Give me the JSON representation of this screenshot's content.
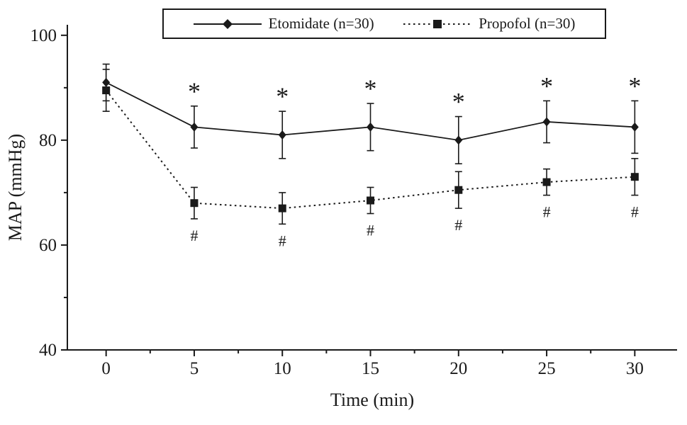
{
  "chart_data": {
    "type": "line",
    "x": [
      0,
      5,
      10,
      15,
      20,
      25,
      30
    ],
    "series": [
      {
        "name": "Etomidate (n=30)",
        "marker": "diamond",
        "line_style": "solid",
        "values": [
          91,
          82.5,
          81,
          82.5,
          80,
          83.5,
          82.5
        ],
        "errors": [
          3.5,
          4,
          4.5,
          4.5,
          4.5,
          4,
          5
        ],
        "annotation": "*",
        "annotation_position": "above",
        "annotated_x": [
          5,
          10,
          15,
          20,
          25,
          30
        ]
      },
      {
        "name": "Propofol (n=30)",
        "marker": "square",
        "line_style": "dashed",
        "values": [
          89.5,
          68,
          67,
          68.5,
          70.5,
          72,
          73
        ],
        "errors": [
          4,
          3,
          3,
          2.5,
          3.5,
          2.5,
          3.5
        ],
        "annotation": "#",
        "annotation_position": "below",
        "annotated_x": [
          5,
          10,
          15,
          20,
          25,
          30
        ]
      }
    ],
    "xlabel": "Time (min)",
    "ylabel": "MAP (mmHg)",
    "xlim": [
      -2.2,
      32.4
    ],
    "ylim": [
      40,
      102
    ],
    "xticks": [
      0,
      5,
      10,
      15,
      20,
      25,
      30
    ],
    "yticks": [
      40,
      60,
      80,
      100
    ],
    "x_minor_step": 2.5,
    "y_minor_step": 10,
    "grid": false,
    "legend_position": "top-center",
    "colors": {
      "line": "#1a1a1a",
      "background": "#ffffff"
    }
  }
}
